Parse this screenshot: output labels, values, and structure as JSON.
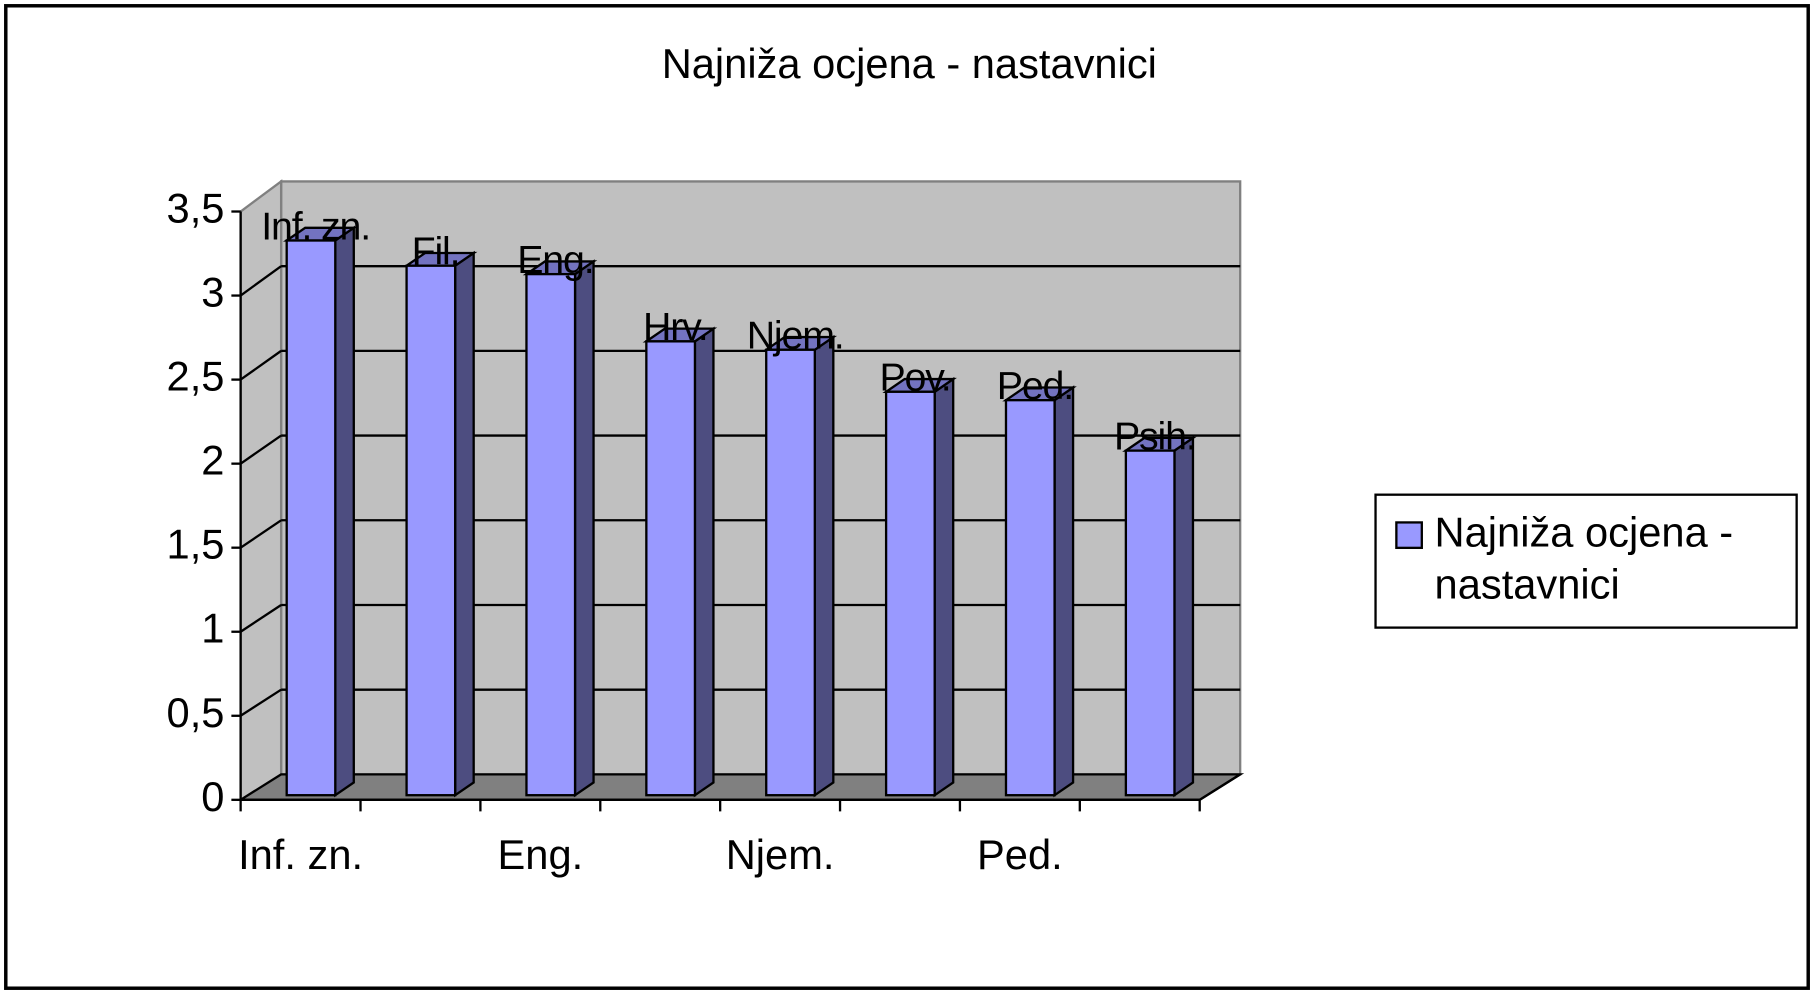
{
  "chart_data": {
    "type": "bar3d",
    "title": "Najniža ocjena - nastavnici",
    "categories": [
      "Inf. zn.",
      "Fil.",
      "Eng.",
      "Hrv.",
      "Njem.",
      "Pov.",
      "Ped.",
      "Psih."
    ],
    "xtick_step": 2,
    "series": [
      {
        "name": "Najniža ocjena - nastavnici",
        "color": "#9999ff",
        "values": [
          3.3,
          3.15,
          3.1,
          2.7,
          2.65,
          2.4,
          2.35,
          2.05
        ]
      }
    ],
    "ylim": [
      0,
      3.5
    ],
    "yticks": [
      0,
      {
        "value": 0.5,
        "label": "0,5"
      },
      1,
      {
        "value": 1.5,
        "label": "1,5"
      },
      2,
      {
        "value": 2.5,
        "label": "2,5"
      },
      3,
      {
        "value": 3.5,
        "label": "3,5"
      }
    ],
    "grid": true,
    "data_labels": "category",
    "legend": "right"
  }
}
